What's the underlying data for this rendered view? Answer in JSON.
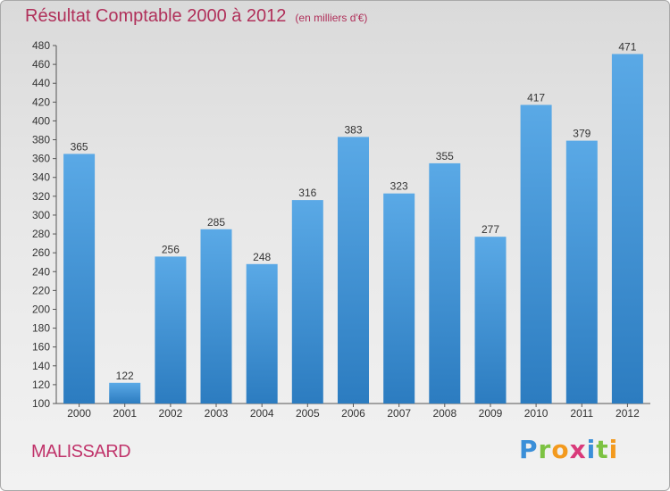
{
  "header": {
    "title": "Résultat Comptable 2000 à 2012",
    "unit": "(en milliers d'€)"
  },
  "footer": {
    "commune": "MALISSARD",
    "logo_letters": [
      {
        "ch": "P",
        "color": "#3a8fd8"
      },
      {
        "ch": "r",
        "color": "#7cc242"
      },
      {
        "ch": "o",
        "color": "#f39a1e"
      },
      {
        "ch": "x",
        "color": "#d93a7a"
      },
      {
        "ch": "i",
        "color": "#3a8fd8"
      },
      {
        "ch": "t",
        "color": "#7cc242"
      },
      {
        "ch": "i",
        "color": "#f39a1e"
      }
    ]
  },
  "chart_data": {
    "type": "bar",
    "title": "Résultat Comptable 2000 à 2012",
    "subtitle": "(en milliers d'€)",
    "categories": [
      "2000",
      "2001",
      "2002",
      "2003",
      "2004",
      "2005",
      "2006",
      "2007",
      "2008",
      "2009",
      "2010",
      "2011",
      "2012"
    ],
    "values": [
      365,
      122,
      256,
      285,
      248,
      316,
      383,
      323,
      355,
      277,
      417,
      379,
      471
    ],
    "ylim": [
      100,
      480
    ],
    "ytick_step": 20,
    "grid": false,
    "bar_color_top": "#5aa9e6",
    "bar_color_bottom": "#2c7cc0"
  }
}
